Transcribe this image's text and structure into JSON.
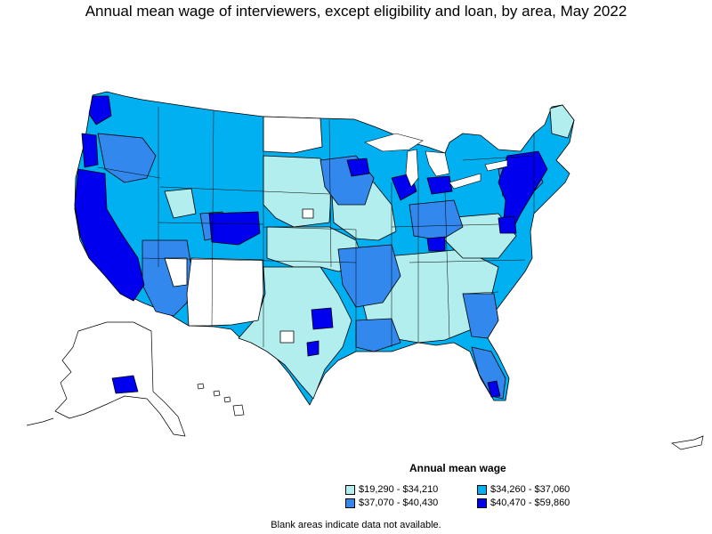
{
  "title": "Annual mean wage of interviewers, except eligibility and loan, by area, May 2022",
  "legend": {
    "title": "Annual mean wage",
    "items": [
      {
        "label": "$19,290 - $34,210",
        "color": "#b3eeee"
      },
      {
        "label": "$34,260 - $37,060",
        "color": "#00b0f0"
      },
      {
        "label": "$37,070 - $40,430",
        "color": "#3388ee"
      },
      {
        "label": "$40,470 - $59,860",
        "color": "#0000ee"
      }
    ]
  },
  "footnote": "Blank areas indicate data not available."
}
